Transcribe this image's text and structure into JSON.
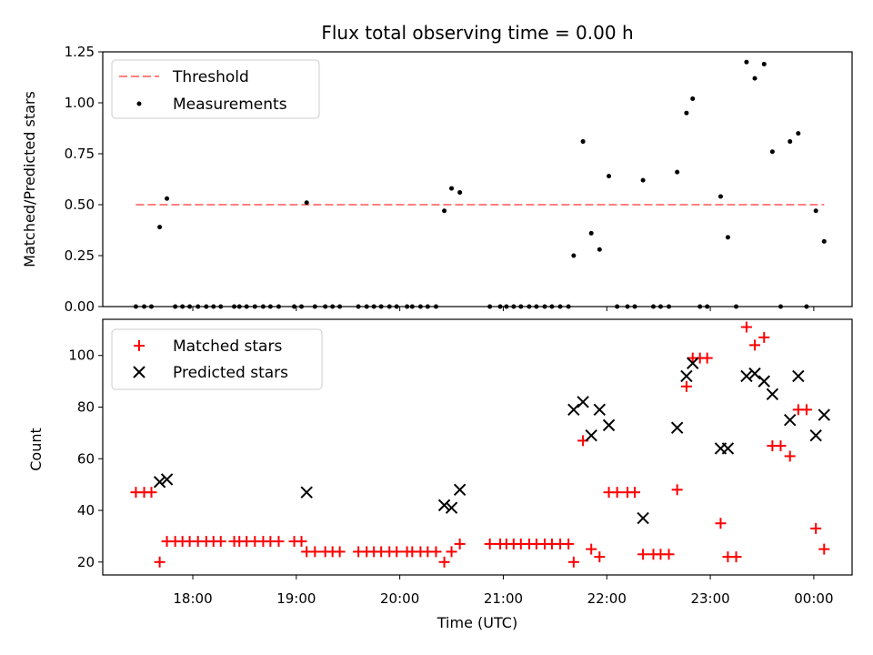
{
  "title": "Flux total observing time = 0.00 h",
  "chart_data": [
    {
      "type": "scatter",
      "ylabel": "Matched/Predicted stars",
      "ylim": [
        0,
        1.25
      ],
      "yticks": [
        "0.00",
        "0.25",
        "0.50",
        "0.75",
        "1.00",
        "1.25"
      ],
      "xlim_hours": [
        17.13,
        24.37
      ],
      "threshold": {
        "name": "Threshold",
        "y": 0.5,
        "x_start_hours": 17.45,
        "x_end_hours": 24.1,
        "color": "#ff7f7f"
      },
      "series": [
        {
          "name": "Measurements",
          "color": "#000000",
          "points": [
            [
              17.45,
              0
            ],
            [
              17.53,
              0
            ],
            [
              17.6,
              0
            ],
            [
              17.68,
              0.39
            ],
            [
              17.75,
              0.53
            ],
            [
              17.83,
              0
            ],
            [
              17.9,
              0
            ],
            [
              17.97,
              0
            ],
            [
              18.05,
              0
            ],
            [
              18.13,
              0
            ],
            [
              18.2,
              0
            ],
            [
              18.27,
              0
            ],
            [
              18.4,
              0
            ],
            [
              18.45,
              0
            ],
            [
              18.52,
              0
            ],
            [
              18.6,
              0
            ],
            [
              18.68,
              0
            ],
            [
              18.75,
              0
            ],
            [
              18.83,
              0
            ],
            [
              18.98,
              0
            ],
            [
              19.05,
              0
            ],
            [
              19.1,
              0.51
            ],
            [
              19.18,
              0
            ],
            [
              19.28,
              0
            ],
            [
              19.35,
              0
            ],
            [
              19.42,
              0
            ],
            [
              19.6,
              0
            ],
            [
              19.68,
              0
            ],
            [
              19.75,
              0
            ],
            [
              19.82,
              0
            ],
            [
              19.9,
              0
            ],
            [
              19.97,
              0
            ],
            [
              20.07,
              0
            ],
            [
              20.12,
              0
            ],
            [
              20.2,
              0
            ],
            [
              20.27,
              0
            ],
            [
              20.35,
              0
            ],
            [
              20.43,
              0.47
            ],
            [
              20.5,
              0.58
            ],
            [
              20.58,
              0.56
            ],
            [
              20.87,
              0
            ],
            [
              20.97,
              0
            ],
            [
              21.03,
              0
            ],
            [
              21.1,
              0
            ],
            [
              21.17,
              0
            ],
            [
              21.25,
              0
            ],
            [
              21.32,
              0
            ],
            [
              21.4,
              0
            ],
            [
              21.47,
              0
            ],
            [
              21.55,
              0
            ],
            [
              21.63,
              0
            ],
            [
              21.68,
              0.25
            ],
            [
              21.77,
              0.81
            ],
            [
              21.85,
              0.36
            ],
            [
              21.93,
              0.28
            ],
            [
              22.02,
              0.64
            ],
            [
              22.1,
              0
            ],
            [
              22.2,
              0
            ],
            [
              22.27,
              0
            ],
            [
              22.35,
              0.62
            ],
            [
              22.45,
              0
            ],
            [
              22.52,
              0
            ],
            [
              22.6,
              0
            ],
            [
              22.68,
              0.66
            ],
            [
              22.77,
              0.95
            ],
            [
              22.83,
              1.02
            ],
            [
              22.9,
              0
            ],
            [
              22.97,
              0
            ],
            [
              23.1,
              0.54
            ],
            [
              23.17,
              0.34
            ],
            [
              23.25,
              0
            ],
            [
              23.35,
              1.2
            ],
            [
              23.43,
              1.12
            ],
            [
              23.52,
              1.19
            ],
            [
              23.6,
              0.76
            ],
            [
              23.68,
              0
            ],
            [
              23.77,
              0.81
            ],
            [
              23.85,
              0.85
            ],
            [
              23.93,
              0
            ],
            [
              24.02,
              0.47
            ],
            [
              24.1,
              0.32
            ]
          ]
        }
      ],
      "legend": "top-left"
    },
    {
      "type": "scatter",
      "xlabel": "Time (UTC)",
      "ylabel": "Count",
      "ylim": [
        15,
        114
      ],
      "yticks": [
        "20",
        "40",
        "60",
        "80",
        "100"
      ],
      "xticks": [
        "18:00",
        "19:00",
        "20:00",
        "21:00",
        "22:00",
        "23:00",
        "00:00"
      ],
      "xlim_hours": [
        17.13,
        24.37
      ],
      "series": [
        {
          "name": "Matched stars",
          "marker": "plus",
          "color": "#ff0000",
          "points": [
            [
              17.45,
              47
            ],
            [
              17.53,
              47
            ],
            [
              17.6,
              47
            ],
            [
              17.68,
              20
            ],
            [
              17.75,
              28
            ],
            [
              17.83,
              28
            ],
            [
              17.9,
              28
            ],
            [
              17.97,
              28
            ],
            [
              18.05,
              28
            ],
            [
              18.13,
              28
            ],
            [
              18.2,
              28
            ],
            [
              18.27,
              28
            ],
            [
              18.4,
              28
            ],
            [
              18.45,
              28
            ],
            [
              18.52,
              28
            ],
            [
              18.6,
              28
            ],
            [
              18.68,
              28
            ],
            [
              18.75,
              28
            ],
            [
              18.83,
              28
            ],
            [
              18.98,
              28
            ],
            [
              19.05,
              28
            ],
            [
              19.1,
              24
            ],
            [
              19.18,
              24
            ],
            [
              19.28,
              24
            ],
            [
              19.35,
              24
            ],
            [
              19.42,
              24
            ],
            [
              19.6,
              24
            ],
            [
              19.68,
              24
            ],
            [
              19.75,
              24
            ],
            [
              19.82,
              24
            ],
            [
              19.9,
              24
            ],
            [
              19.97,
              24
            ],
            [
              20.07,
              24
            ],
            [
              20.12,
              24
            ],
            [
              20.2,
              24
            ],
            [
              20.27,
              24
            ],
            [
              20.35,
              24
            ],
            [
              20.43,
              20
            ],
            [
              20.5,
              24
            ],
            [
              20.58,
              27
            ],
            [
              20.87,
              27
            ],
            [
              20.97,
              27
            ],
            [
              21.03,
              27
            ],
            [
              21.1,
              27
            ],
            [
              21.17,
              27
            ],
            [
              21.25,
              27
            ],
            [
              21.32,
              27
            ],
            [
              21.4,
              27
            ],
            [
              21.47,
              27
            ],
            [
              21.55,
              27
            ],
            [
              21.63,
              27
            ],
            [
              21.68,
              20
            ],
            [
              21.77,
              67
            ],
            [
              21.85,
              25
            ],
            [
              21.93,
              22
            ],
            [
              22.02,
              47
            ],
            [
              22.1,
              47
            ],
            [
              22.2,
              47
            ],
            [
              22.27,
              47
            ],
            [
              22.35,
              23
            ],
            [
              22.45,
              23
            ],
            [
              22.52,
              23
            ],
            [
              22.6,
              23
            ],
            [
              22.68,
              48
            ],
            [
              22.77,
              88
            ],
            [
              22.83,
              99
            ],
            [
              22.9,
              99
            ],
            [
              22.97,
              99
            ],
            [
              23.1,
              35
            ],
            [
              23.17,
              22
            ],
            [
              23.25,
              22
            ],
            [
              23.35,
              111
            ],
            [
              23.43,
              104
            ],
            [
              23.52,
              107
            ],
            [
              23.6,
              65
            ],
            [
              23.68,
              65
            ],
            [
              23.77,
              61
            ],
            [
              23.85,
              79
            ],
            [
              23.93,
              79
            ],
            [
              24.02,
              33
            ],
            [
              24.1,
              25
            ]
          ]
        },
        {
          "name": "Predicted stars",
          "marker": "x",
          "color": "#000000",
          "points": [
            [
              17.68,
              51
            ],
            [
              17.75,
              52
            ],
            [
              19.1,
              47
            ],
            [
              20.43,
              42
            ],
            [
              20.5,
              41
            ],
            [
              20.58,
              48
            ],
            [
              21.68,
              79
            ],
            [
              21.77,
              82
            ],
            [
              21.85,
              69
            ],
            [
              21.93,
              79
            ],
            [
              22.02,
              73
            ],
            [
              22.35,
              37
            ],
            [
              22.68,
              72
            ],
            [
              22.77,
              92
            ],
            [
              22.83,
              97
            ],
            [
              23.1,
              64
            ],
            [
              23.17,
              64
            ],
            [
              23.35,
              92
            ],
            [
              23.43,
              93
            ],
            [
              23.52,
              90
            ],
            [
              23.6,
              85
            ],
            [
              23.77,
              75
            ],
            [
              23.85,
              92
            ],
            [
              24.02,
              69
            ],
            [
              24.1,
              77
            ]
          ]
        }
      ],
      "legend": "top-left"
    }
  ]
}
